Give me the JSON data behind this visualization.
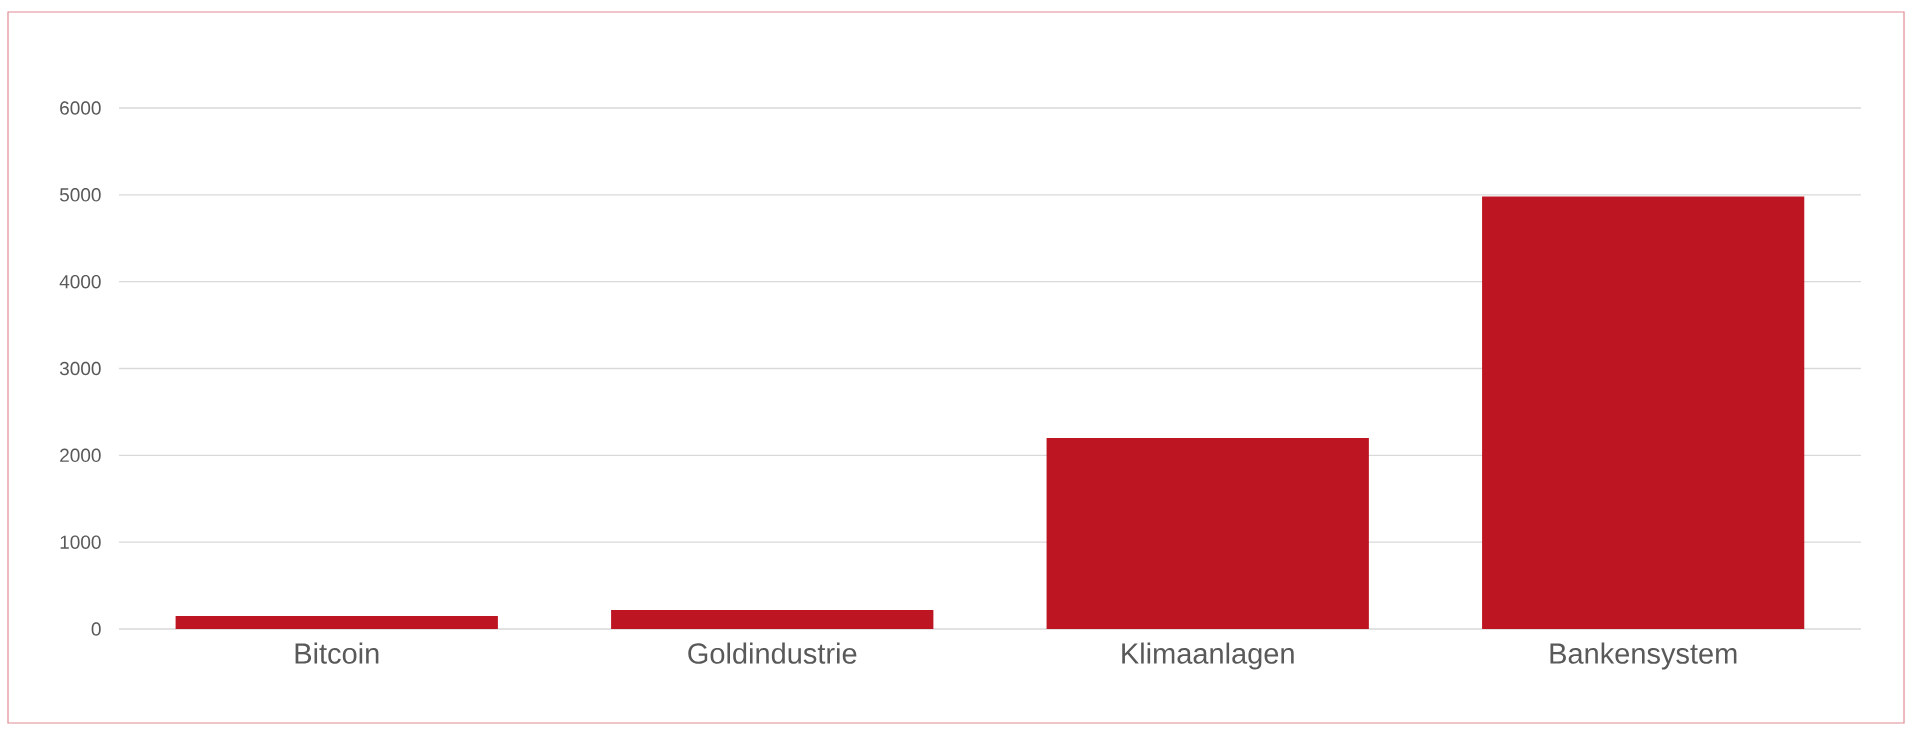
{
  "chart_data": {
    "type": "bar",
    "categories": [
      "Bitcoin",
      "Goldindustrie",
      "Klimaanlagen",
      "Bankensystem"
    ],
    "values": [
      150,
      220,
      2200,
      4980
    ],
    "color": "#bd1622",
    "ylim": [
      0,
      6000
    ],
    "yticks": [
      0,
      1000,
      2000,
      3000,
      4000,
      5000,
      6000
    ],
    "grid": "y"
  }
}
